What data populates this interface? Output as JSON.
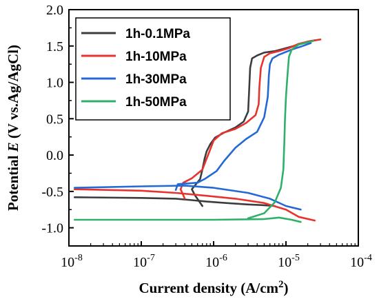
{
  "chart_data": {
    "type": "line",
    "xlabel_prefix": "Current density (A/cm",
    "xlabel_sup": "2",
    "xlabel_suffix": ")",
    "ylabel_prefix": "Potential ",
    "ylabel_var": "E",
    "ylabel_suffix": " (V vs.Ag/AgCl)",
    "x_scale": "log",
    "xlim": [
      1e-08,
      0.0001
    ],
    "ylim": [
      -1.25,
      2.0
    ],
    "x_ticks": [
      {
        "value": 1e-08,
        "base": "10",
        "exp": "-8"
      },
      {
        "value": 1e-07,
        "base": "10",
        "exp": "-7"
      },
      {
        "value": 1e-06,
        "base": "10",
        "exp": "-6"
      },
      {
        "value": 1e-05,
        "base": "10",
        "exp": "-5"
      },
      {
        "value": 0.0001,
        "base": "10",
        "exp": "-4"
      }
    ],
    "y_ticks": [
      {
        "value": 2.0,
        "label": "2.0"
      },
      {
        "value": 1.5,
        "label": "1.5"
      },
      {
        "value": 1.0,
        "label": "1.0"
      },
      {
        "value": 0.5,
        "label": "0.5"
      },
      {
        "value": 0.0,
        "label": "0.0"
      },
      {
        "value": -0.5,
        "label": "-0.5"
      },
      {
        "value": -1.0,
        "label": "-1.0"
      }
    ],
    "grid": false,
    "legend_position": "top-left",
    "series": [
      {
        "name": "1h-0.1MPa",
        "color": "#3c3c3c",
        "points": [
          [
            1.2e-08,
            -0.58
          ],
          [
            1e-07,
            -0.59
          ],
          [
            3e-07,
            -0.6
          ],
          [
            5e-07,
            -0.62
          ],
          [
            8e-07,
            -0.64
          ],
          [
            1.5e-06,
            -0.66
          ],
          [
            3e-06,
            -0.68
          ],
          [
            5e-06,
            -0.69
          ],
          [
            7e-06,
            -0.7
          ]
        ],
        "anodic": [
          [
            7e-07,
            -0.7
          ],
          [
            5.5e-07,
            -0.55
          ],
          [
            5e-07,
            -0.47
          ],
          [
            5.5e-07,
            -0.42
          ],
          [
            6.5e-07,
            -0.33
          ],
          [
            7e-07,
            -0.2
          ],
          [
            7.5e-07,
            -0.05
          ],
          [
            8e-07,
            0.05
          ],
          [
            9e-07,
            0.15
          ],
          [
            1.05e-06,
            0.24
          ],
          [
            1.4e-06,
            0.31
          ],
          [
            2e-06,
            0.38
          ],
          [
            2.6e-06,
            0.46
          ],
          [
            3e-06,
            0.6
          ],
          [
            3.1e-06,
            0.9
          ],
          [
            3.2e-06,
            1.2
          ],
          [
            3.4e-06,
            1.33
          ],
          [
            4e-06,
            1.37
          ],
          [
            5e-06,
            1.41
          ],
          [
            7e-06,
            1.43
          ],
          [
            1e-05,
            1.47
          ],
          [
            1.5e-05,
            1.52
          ],
          [
            2e-05,
            1.56
          ],
          [
            2.6e-05,
            1.58
          ]
        ]
      },
      {
        "name": "1h-10MPa",
        "color": "#e8322e",
        "points": [
          [
            1.2e-08,
            -0.47
          ],
          [
            1e-07,
            -0.49
          ],
          [
            3e-07,
            -0.52
          ],
          [
            8e-07,
            -0.56
          ],
          [
            2e-06,
            -0.6
          ],
          [
            5e-06,
            -0.66
          ],
          [
            1e-05,
            -0.75
          ],
          [
            1.5e-05,
            -0.85
          ],
          [
            2.5e-05,
            -0.9
          ]
        ],
        "anodic": [
          [
            4e-07,
            -0.6
          ],
          [
            3.5e-07,
            -0.47
          ],
          [
            3.8e-07,
            -0.38
          ],
          [
            5e-07,
            -0.32
          ],
          [
            7e-07,
            -0.2
          ],
          [
            8e-07,
            -0.05
          ],
          [
            9e-07,
            0.08
          ],
          [
            1e-06,
            0.2
          ],
          [
            1.3e-06,
            0.3
          ],
          [
            2e-06,
            0.36
          ],
          [
            2.8e-06,
            0.44
          ],
          [
            3.8e-06,
            0.55
          ],
          [
            4.2e-06,
            0.7
          ],
          [
            4.3e-06,
            0.95
          ],
          [
            4.5e-06,
            1.2
          ],
          [
            5e-06,
            1.35
          ],
          [
            6e-06,
            1.4
          ],
          [
            8e-06,
            1.43
          ],
          [
            1.1e-05,
            1.47
          ],
          [
            1.5e-05,
            1.53
          ],
          [
            2.2e-05,
            1.57
          ],
          [
            3e-05,
            1.59
          ]
        ]
      },
      {
        "name": "1h-30MPa",
        "color": "#2468d6",
        "points": [
          [
            1.2e-08,
            -0.45
          ],
          [
            1e-07,
            -0.43
          ],
          [
            4e-07,
            -0.42
          ],
          [
            1e-06,
            -0.45
          ],
          [
            3e-06,
            -0.52
          ],
          [
            6e-06,
            -0.6
          ],
          [
            1e-05,
            -0.7
          ],
          [
            1.6e-05,
            -0.75
          ]
        ],
        "anodic": [
          [
            3e-07,
            -0.48
          ],
          [
            3.2e-07,
            -0.4
          ],
          [
            6e-07,
            -0.38
          ],
          [
            7.5e-07,
            -0.33
          ],
          [
            1.1e-06,
            -0.22
          ],
          [
            1.4e-06,
            -0.08
          ],
          [
            2e-06,
            0.1
          ],
          [
            2.8e-06,
            0.22
          ],
          [
            4e-06,
            0.32
          ],
          [
            5e-06,
            0.52
          ],
          [
            5.6e-06,
            0.8
          ],
          [
            5.8e-06,
            1.1
          ],
          [
            6e-06,
            1.25
          ],
          [
            6.5e-06,
            1.33
          ],
          [
            8e-06,
            1.38
          ],
          [
            1.2e-05,
            1.45
          ],
          [
            1.7e-05,
            1.5
          ],
          [
            2.2e-05,
            1.54
          ]
        ]
      },
      {
        "name": "1h-50MPa",
        "color": "#2eaf6a",
        "points": [
          [
            1.2e-08,
            -0.89
          ],
          [
            1e-07,
            -0.89
          ],
          [
            1e-06,
            -0.89
          ],
          [
            5e-06,
            -0.88
          ],
          [
            8e-06,
            -0.86
          ],
          [
            1.2e-05,
            -0.89
          ],
          [
            1.6e-05,
            -0.92
          ]
        ],
        "anodic": [
          [
            3e-06,
            -0.87
          ],
          [
            5e-06,
            -0.8
          ],
          [
            7e-06,
            -0.65
          ],
          [
            8.5e-06,
            -0.45
          ],
          [
            9.2e-06,
            -0.2
          ],
          [
            9.5e-06,
            0.2
          ],
          [
            9.7e-06,
            0.5
          ],
          [
            1e-05,
            0.8
          ],
          [
            1.05e-05,
            1.1
          ],
          [
            1.1e-05,
            1.35
          ],
          [
            1.2e-05,
            1.45
          ],
          [
            1.5e-05,
            1.52
          ],
          [
            2e-05,
            1.55
          ],
          [
            2.4e-05,
            1.57
          ]
        ]
      }
    ]
  }
}
